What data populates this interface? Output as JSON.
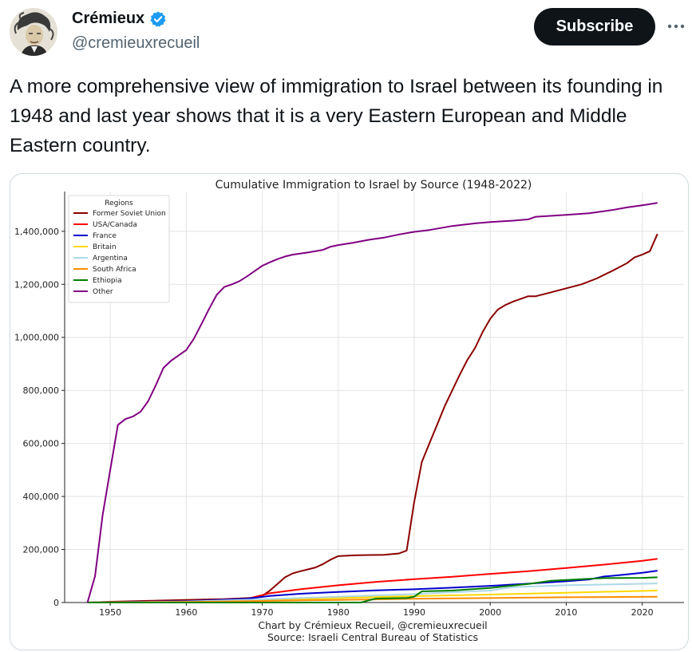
{
  "author": {
    "name": "Crémieux",
    "handle": "@cremieuxrecueil"
  },
  "actions": {
    "subscribe_label": "Subscribe",
    "more_icon": "more-horizontal-icon"
  },
  "tweet": {
    "text": "A more comprehensive view of immigration to Israel between its founding in 1948 and last year shows that it is a very Eastern European and Middle Eastern country."
  },
  "colors": {
    "verified": "#1d9bf0",
    "subscribe_bg": "#0f1419",
    "border": "#cfd9de"
  },
  "chart_data": {
    "type": "line",
    "title": "Cumulative Immigration to Israel by Source (1948-2022)",
    "xlabel": "",
    "ylabel": "",
    "xlim": [
      1944,
      2025.5
    ],
    "ylim": [
      0,
      1550000
    ],
    "x_ticks": [
      1950,
      1960,
      1970,
      1980,
      1990,
      2000,
      2010,
      2020
    ],
    "y_ticks": [
      0,
      200000,
      400000,
      600000,
      800000,
      1000000,
      1200000,
      1400000
    ],
    "y_tick_labels": [
      "0",
      "200,000",
      "400,000",
      "600,000",
      "800,000",
      "1,000,000",
      "1,200,000",
      "1,400,000"
    ],
    "grid": true,
    "legend": {
      "title": "Regions",
      "position": "top-left"
    },
    "credit_lines": [
      "Chart by Crémieux Recueil, @cremieuxrecueil",
      "Source: Israeli Central Bureau of Statistics"
    ],
    "series": [
      {
        "name": "Former Soviet Union",
        "color": "#8b0000",
        "x": [
          1947,
          1950,
          1960,
          1965,
          1969,
          1970,
          1971,
          1972,
          1973,
          1974,
          1975,
          1976,
          1977,
          1978,
          1979,
          1980,
          1982,
          1984,
          1986,
          1988,
          1989,
          1990,
          1991,
          1992,
          1993,
          1994,
          1995,
          1996,
          1997,
          1998,
          1999,
          2000,
          2001,
          2002,
          2003,
          2004,
          2005,
          2006,
          2008,
          2010,
          2012,
          2014,
          2016,
          2018,
          2019,
          2020,
          2021,
          2022
        ],
        "y": [
          0,
          3000,
          10000,
          13000,
          18000,
          25000,
          45000,
          70000,
          95000,
          110000,
          118000,
          125000,
          132000,
          145000,
          162000,
          175000,
          178000,
          179000,
          180000,
          185000,
          196000,
          380000,
          530000,
          600000,
          670000,
          740000,
          800000,
          860000,
          915000,
          960000,
          1020000,
          1070000,
          1105000,
          1122000,
          1135000,
          1145000,
          1155000,
          1155000,
          1170000,
          1185000,
          1200000,
          1222000,
          1250000,
          1280000,
          1302000,
          1312000,
          1325000,
          1390000
        ]
      },
      {
        "name": "USA/Canada",
        "color": "#ff0000",
        "x": [
          1947,
          1960,
          1968,
          1971,
          1975,
          1980,
          1985,
          1990,
          1995,
          2000,
          2005,
          2010,
          2015,
          2020,
          2022
        ],
        "y": [
          0,
          5000,
          14000,
          35000,
          50000,
          65000,
          78000,
          88000,
          97000,
          108000,
          118000,
          130000,
          143000,
          157000,
          165000
        ]
      },
      {
        "name": "France",
        "color": "#0000cd",
        "x": [
          1947,
          1960,
          1968,
          1971,
          1975,
          1980,
          1985,
          1990,
          1995,
          2000,
          2005,
          2010,
          2013,
          2015,
          2018,
          2020,
          2022
        ],
        "y": [
          0,
          5000,
          14000,
          25000,
          33000,
          40000,
          46000,
          50000,
          56000,
          63000,
          71000,
          80000,
          87000,
          98000,
          106000,
          112000,
          120000
        ]
      },
      {
        "name": "Britain",
        "color": "#ffd700",
        "x": [
          1947,
          1960,
          1970,
          1980,
          1990,
          2000,
          2010,
          2022
        ],
        "y": [
          0,
          3000,
          10000,
          17000,
          24000,
          30000,
          37000,
          45000
        ]
      },
      {
        "name": "Argentina",
        "color": "#add8e6",
        "x": [
          1947,
          1960,
          1970,
          1980,
          1990,
          2000,
          2003,
          2010,
          2022
        ],
        "y": [
          0,
          4000,
          12000,
          22000,
          32000,
          45000,
          58000,
          65000,
          72000
        ]
      },
      {
        "name": "South Africa",
        "color": "#ff8c00",
        "x": [
          1947,
          1960,
          1970,
          1980,
          1990,
          2000,
          2010,
          2022
        ],
        "y": [
          0,
          2000,
          6000,
          10000,
          14000,
          17000,
          20000,
          22000
        ]
      },
      {
        "name": "Ethiopia",
        "color": "#008000",
        "x": [
          1947,
          1983,
          1984,
          1985,
          1989,
          1990,
          1991,
          1995,
          2000,
          2005,
          2008,
          2012,
          2015,
          2020,
          2022
        ],
        "y": [
          0,
          0,
          8000,
          15000,
          17000,
          22000,
          42000,
          45000,
          55000,
          70000,
          82000,
          88000,
          92000,
          93000,
          95000
        ]
      },
      {
        "name": "Other",
        "color": "#800080",
        "x": [
          1947,
          1948,
          1949,
          1950,
          1951,
          1952,
          1953,
          1954,
          1955,
          1956,
          1957,
          1958,
          1959,
          1960,
          1961,
          1962,
          1963,
          1964,
          1965,
          1966,
          1967,
          1968,
          1969,
          1970,
          1971,
          1972,
          1973,
          1974,
          1976,
          1978,
          1979,
          1980,
          1982,
          1984,
          1986,
          1988,
          1990,
          1992,
          1995,
          1998,
          2000,
          2003,
          2005,
          2006,
          2010,
          2013,
          2016,
          2018,
          2020,
          2022
        ],
        "y": [
          0,
          100000,
          330000,
          500000,
          670000,
          692000,
          702000,
          720000,
          760000,
          820000,
          885000,
          912000,
          932000,
          952000,
          995000,
          1050000,
          1107000,
          1160000,
          1190000,
          1200000,
          1212000,
          1230000,
          1250000,
          1270000,
          1283000,
          1295000,
          1305000,
          1312000,
          1320000,
          1330000,
          1342000,
          1348000,
          1357000,
          1368000,
          1376000,
          1388000,
          1398000,
          1405000,
          1420000,
          1430000,
          1435000,
          1440000,
          1445000,
          1455000,
          1462000,
          1468000,
          1480000,
          1490000,
          1498000,
          1507000
        ]
      }
    ]
  }
}
